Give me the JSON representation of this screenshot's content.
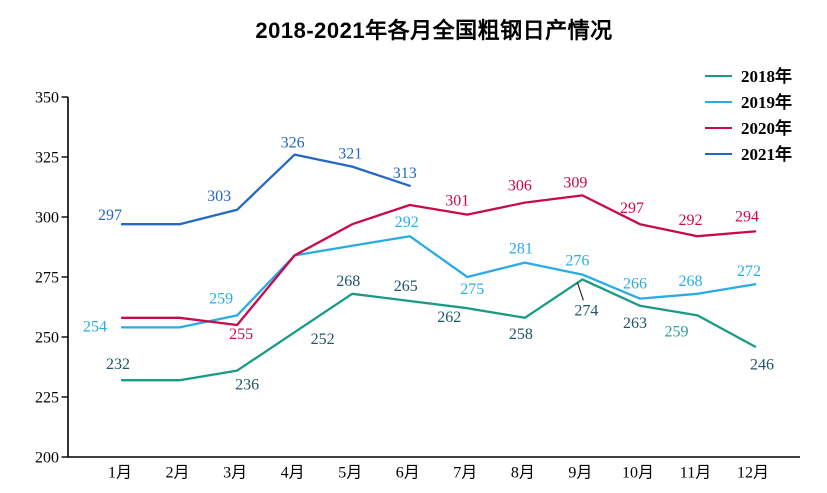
{
  "title": "2018-2021年各月全国粗钢日产情况",
  "chart_data": {
    "type": "line",
    "title": "2018-2021年各月全国粗钢日产情况",
    "xlabel": "",
    "ylabel": "",
    "categories": [
      "1月",
      "2月",
      "3月",
      "4月",
      "5月",
      "6月",
      "7月",
      "8月",
      "9月",
      "10月",
      "11月",
      "12月"
    ],
    "ylim": [
      200,
      350
    ],
    "y_ticks": [
      200,
      225,
      250,
      275,
      300,
      325,
      350
    ],
    "grid": false,
    "legend_position": "top-right",
    "axis_color": "#000000",
    "series": [
      {
        "name": "2018年",
        "color": "#1A9A85",
        "label_color": "#1E5569",
        "values": [
          232,
          232,
          236,
          252,
          268,
          265,
          262,
          258,
          274,
          263,
          259,
          246
        ],
        "labels": [
          {
            "t": "232",
            "dx": -4,
            "dy": -11
          },
          null,
          {
            "t": "236",
            "dx": 10,
            "dy": 19
          },
          {
            "t": "252",
            "dx": 28,
            "dy": 12
          },
          {
            "t": "268",
            "dx": -4,
            "dy": -8
          },
          {
            "t": "265",
            "dx": -4,
            "dy": -10
          },
          {
            "t": "262",
            "dx": -18,
            "dy": 14
          },
          {
            "t": "258",
            "dx": -4,
            "dy": 21
          },
          {
            "t": "274",
            "dx": 4,
            "dy": 36,
            "leader": true
          },
          {
            "t": "263",
            "dx": -5,
            "dy": 22
          },
          {
            "t": "259",
            "dx": -21,
            "dy": 21,
            "color": "#2AA38E"
          },
          {
            "t": "246",
            "dx": 7,
            "dy": 23
          }
        ]
      },
      {
        "name": "2019年",
        "color": "#29ACE3",
        "label_color": "#29ACE3",
        "values": [
          254,
          254,
          259,
          284,
          288,
          292,
          275,
          281,
          276,
          266,
          268,
          272
        ],
        "labels": [
          {
            "t": "254",
            "dx": -27,
            "dy": 4
          },
          null,
          {
            "t": "259",
            "dx": -16,
            "dy": -12
          },
          null,
          null,
          {
            "t": "292",
            "dx": -3,
            "dy": -9
          },
          {
            "t": "275",
            "dx": 5,
            "dy": 17
          },
          {
            "t": "281",
            "dx": -4,
            "dy": -9
          },
          {
            "t": "276",
            "dx": -5,
            "dy": -9
          },
          {
            "t": "266",
            "dx": -5,
            "dy": -10
          },
          {
            "t": "268",
            "dx": -7,
            "dy": -8
          },
          {
            "t": "272",
            "dx": -6,
            "dy": -8
          }
        ]
      },
      {
        "name": "2020年",
        "color": "#C9094E",
        "label_color": "#C9094E",
        "values": [
          258,
          258,
          255,
          284,
          297,
          305,
          301,
          306,
          309,
          297,
          292,
          294
        ],
        "labels": [
          null,
          null,
          {
            "t": "255",
            "dx": 4,
            "dy": 14
          },
          null,
          null,
          null,
          {
            "t": "301",
            "dx": -10,
            "dy": -9
          },
          {
            "t": "306",
            "dx": -5,
            "dy": -12
          },
          {
            "t": "309",
            "dx": -7,
            "dy": -8
          },
          {
            "t": "297",
            "dx": -8,
            "dy": -11
          },
          {
            "t": "292",
            "dx": -7,
            "dy": -11
          },
          {
            "t": "294",
            "dx": -8,
            "dy": -10
          }
        ]
      },
      {
        "name": "2021年",
        "color": "#2368C5",
        "label_color": "#2368C5",
        "values": [
          297,
          297,
          303,
          326,
          321,
          313,
          null,
          null,
          null,
          null,
          null,
          null
        ],
        "labels": [
          {
            "t": "297",
            "dx": -12,
            "dy": -4
          },
          null,
          {
            "t": "303",
            "dx": -18,
            "dy": -9
          },
          {
            "t": "326",
            "dx": -2,
            "dy": -7
          },
          {
            "t": "321",
            "dx": -2,
            "dy": -8
          },
          {
            "t": "313",
            "dx": -5,
            "dy": -8
          },
          null,
          null,
          null,
          null,
          null,
          null
        ]
      }
    ]
  }
}
